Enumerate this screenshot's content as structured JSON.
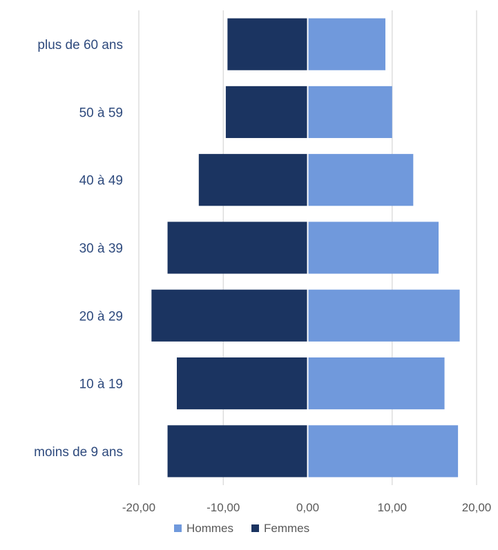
{
  "chart_data": {
    "type": "bar",
    "orientation": "horizontal",
    "stacking": "diverging",
    "title": "",
    "xlabel": "",
    "ylabel": "",
    "categories": [
      "plus de 60 ans",
      "50 à 59",
      "40 à 49",
      "30 à 39",
      "20 à 29",
      "10 à 19",
      "moins de 9 ans"
    ],
    "series": [
      {
        "name": "Hommes",
        "color": "#7099dc",
        "values": [
          9.2,
          10.0,
          12.5,
          15.5,
          18.0,
          16.2,
          17.8
        ]
      },
      {
        "name": "Femmes",
        "color": "#1b3461",
        "values": [
          -9.5,
          -9.7,
          -12.9,
          -16.6,
          -18.5,
          -15.5,
          -16.6
        ]
      }
    ],
    "xlim": [
      -20,
      20
    ],
    "xticks": [
      -20,
      -10,
      0,
      10,
      20
    ],
    "xtick_labels": [
      "-20,00",
      "-10,00",
      "0,00",
      "10,00",
      "20,00"
    ],
    "grid": "vertical",
    "legend": "bottom-center",
    "label_color": "#2e4a7d",
    "grid_color": "#d9d9d9"
  }
}
